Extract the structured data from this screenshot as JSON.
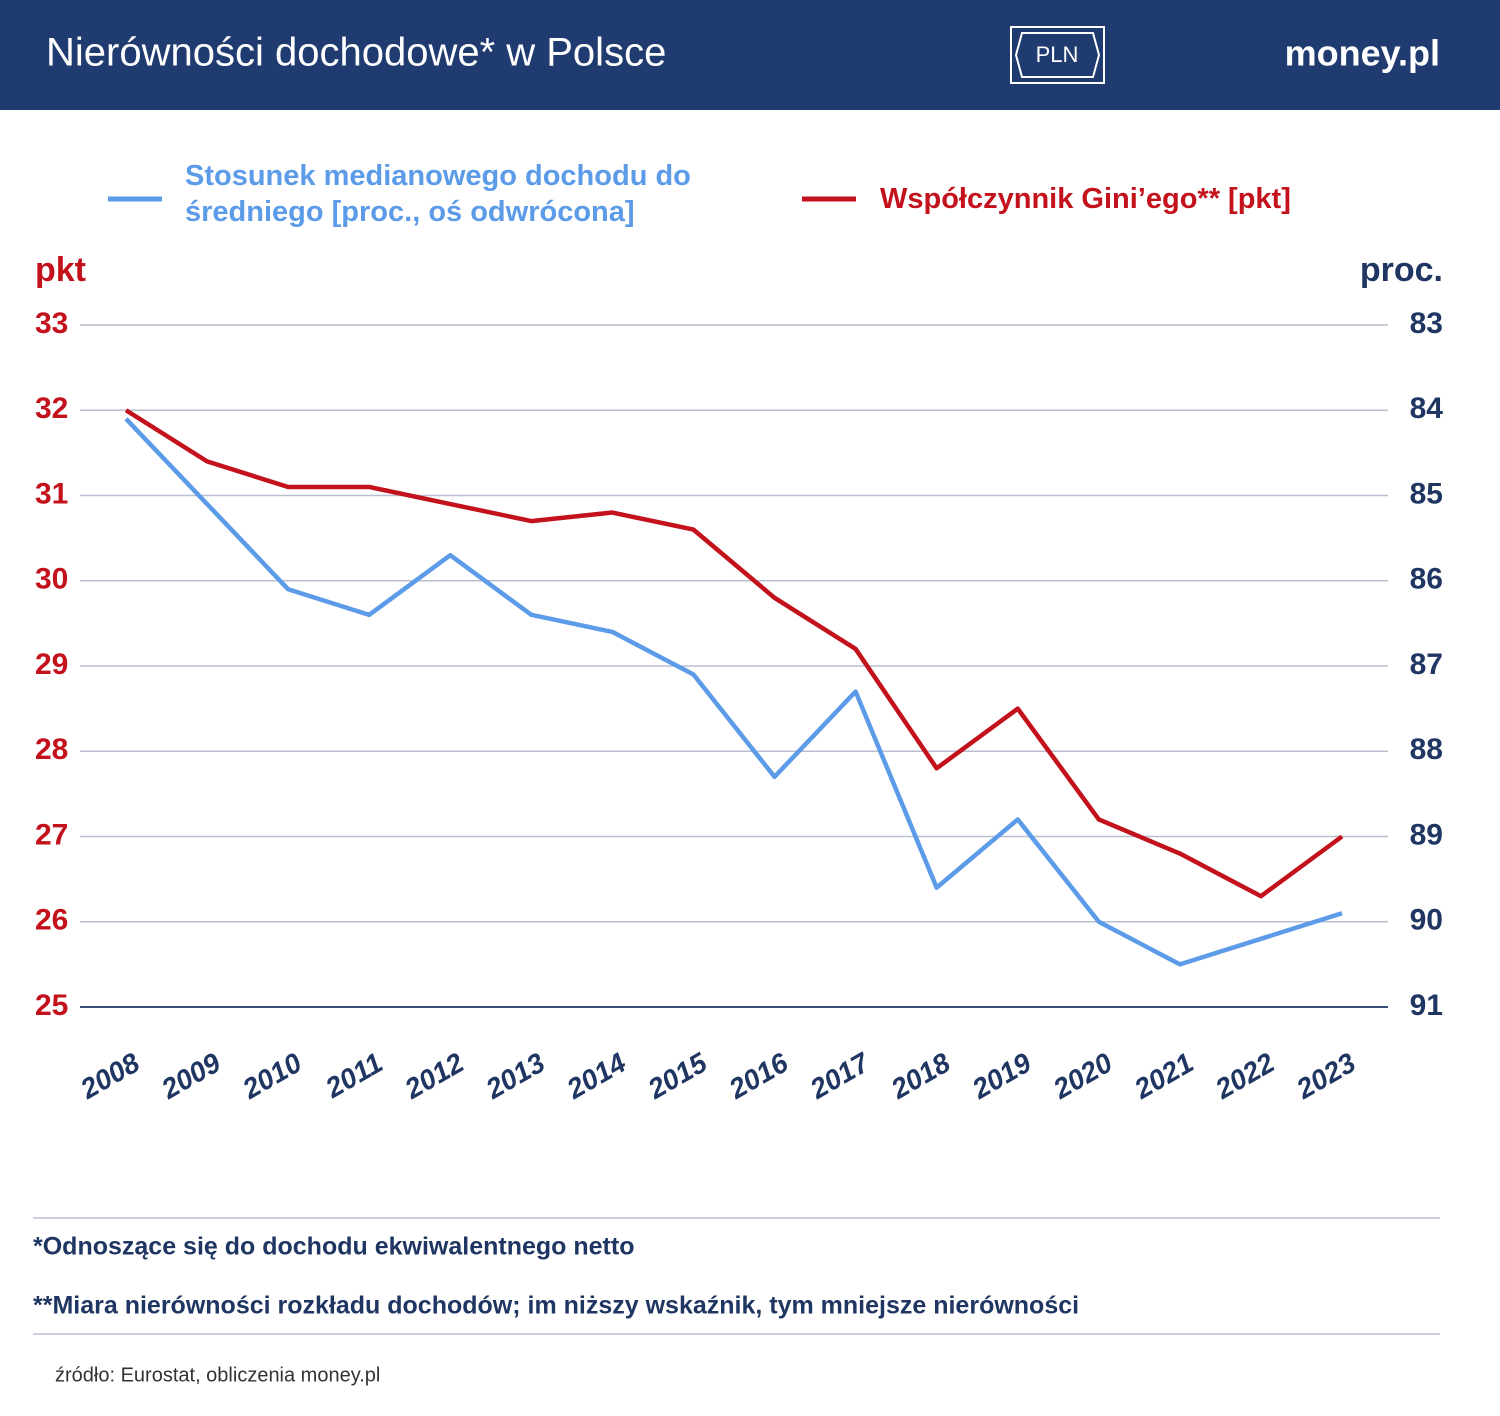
{
  "header": {
    "title": "Nierówności dochodowe* w Polsce",
    "badge": "PLN",
    "brand": "money.pl"
  },
  "chart_data": {
    "type": "line",
    "categories": [
      "2008",
      "2009",
      "2010",
      "2011",
      "2012",
      "2013",
      "2014",
      "2015",
      "2016",
      "2017",
      "2018",
      "2019",
      "2020",
      "2021",
      "2022",
      "2023"
    ],
    "series": [
      {
        "name": "Stosunek medianowego dochodu do średniego [proc., oś odwrócona]",
        "color": "#5b9be8",
        "axis": "y2",
        "values": [
          84.1,
          85.1,
          86.1,
          86.4,
          85.7,
          86.4,
          86.6,
          87.1,
          88.3,
          87.3,
          89.6,
          88.8,
          90.0,
          90.5,
          90.2,
          89.9
        ]
      },
      {
        "name": "Współczynnik Gini’ego** [pkt]",
        "color": "#c3121c",
        "values": [
          32.0,
          31.4,
          31.1,
          31.1,
          30.9,
          30.7,
          30.8,
          30.6,
          29.8,
          29.2,
          27.8,
          28.5,
          27.2,
          26.8,
          26.3,
          27.0
        ]
      }
    ],
    "ylabel": "pkt",
    "y2label": "proc.",
    "ylim": [
      25,
      33
    ],
    "yticks": [
      25,
      26,
      27,
      28,
      29,
      30,
      31,
      32,
      33
    ],
    "y2lim": [
      83,
      91
    ],
    "y2ticks": [
      83,
      84,
      85,
      86,
      87,
      88,
      89,
      90,
      91
    ],
    "y2_inverted": true,
    "grid": true
  },
  "footnotes": [
    "*Odnoszące się do dochodu ekwiwalentnego netto",
    "**Miara nierówności rozkładu dochodów; im niższy wskaźnik, tym mniejsze nierówności"
  ],
  "source": "źródło: Eurostat, obliczenia money.pl"
}
